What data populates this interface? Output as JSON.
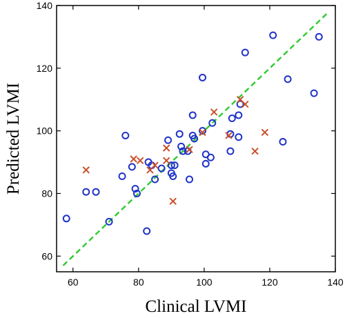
{
  "chart_data": {
    "type": "scatter",
    "title": "",
    "xlabel": "Clinical LVMI",
    "ylabel": "Predicted LVMI",
    "xlim": [
      55,
      140
    ],
    "ylim": [
      55,
      140
    ],
    "xticks": [
      60,
      80,
      100,
      120,
      140
    ],
    "yticks": [
      60,
      80,
      100,
      120,
      140
    ],
    "xtick_labels": [
      "60",
      "80",
      "100",
      "120",
      "140"
    ],
    "ytick_labels": [
      "60",
      "80",
      "100",
      "120",
      "140"
    ],
    "grid": false,
    "legend": "none",
    "series": [
      {
        "marker": "circle",
        "color": "#1f33c8",
        "points": [
          {
            "x": 58,
            "y": 72
          },
          {
            "x": 64,
            "y": 80.5
          },
          {
            "x": 67,
            "y": 80.5
          },
          {
            "x": 71,
            "y": 71
          },
          {
            "x": 75,
            "y": 85.5
          },
          {
            "x": 76,
            "y": 98.5
          },
          {
            "x": 78,
            "y": 88.5
          },
          {
            "x": 79,
            "y": 81.5
          },
          {
            "x": 79.5,
            "y": 80
          },
          {
            "x": 82.5,
            "y": 68
          },
          {
            "x": 83,
            "y": 90
          },
          {
            "x": 84,
            "y": 89
          },
          {
            "x": 85,
            "y": 84.5
          },
          {
            "x": 87,
            "y": 88
          },
          {
            "x": 89,
            "y": 97
          },
          {
            "x": 90,
            "y": 89
          },
          {
            "x": 90,
            "y": 86.5
          },
          {
            "x": 90.5,
            "y": 85.5
          },
          {
            "x": 91,
            "y": 89
          },
          {
            "x": 92.5,
            "y": 99
          },
          {
            "x": 93,
            "y": 95
          },
          {
            "x": 93.5,
            "y": 93.5
          },
          {
            "x": 95,
            "y": 93.5
          },
          {
            "x": 95.5,
            "y": 84.5
          },
          {
            "x": 96.5,
            "y": 98.5
          },
          {
            "x": 96.5,
            "y": 105
          },
          {
            "x": 97,
            "y": 97.5
          },
          {
            "x": 99.5,
            "y": 100
          },
          {
            "x": 99.5,
            "y": 117
          },
          {
            "x": 100.5,
            "y": 92.5
          },
          {
            "x": 100.5,
            "y": 89.5
          },
          {
            "x": 102,
            "y": 91.5
          },
          {
            "x": 102.5,
            "y": 102.5
          },
          {
            "x": 108,
            "y": 93.5
          },
          {
            "x": 108,
            "y": 99
          },
          {
            "x": 108.5,
            "y": 104
          },
          {
            "x": 110.5,
            "y": 98
          },
          {
            "x": 110.5,
            "y": 105
          },
          {
            "x": 111,
            "y": 108.5
          },
          {
            "x": 112.5,
            "y": 125
          },
          {
            "x": 121,
            "y": 130.5
          },
          {
            "x": 124,
            "y": 96.5
          },
          {
            "x": 125.5,
            "y": 116.5
          },
          {
            "x": 133.5,
            "y": 112
          },
          {
            "x": 135,
            "y": 130
          }
        ]
      },
      {
        "marker": "x",
        "color": "#c9502a",
        "points": [
          {
            "x": 64,
            "y": 87.5
          },
          {
            "x": 78.5,
            "y": 91
          },
          {
            "x": 80.5,
            "y": 90.5
          },
          {
            "x": 83.5,
            "y": 87.5
          },
          {
            "x": 85,
            "y": 89
          },
          {
            "x": 88.5,
            "y": 90.5
          },
          {
            "x": 88.5,
            "y": 94.5
          },
          {
            "x": 90.5,
            "y": 77.5
          },
          {
            "x": 95.5,
            "y": 94
          },
          {
            "x": 99.5,
            "y": 99.5
          },
          {
            "x": 103,
            "y": 106
          },
          {
            "x": 107.5,
            "y": 98.5
          },
          {
            "x": 111,
            "y": 110
          },
          {
            "x": 112.5,
            "y": 108.5
          },
          {
            "x": 115.5,
            "y": 93.5
          },
          {
            "x": 118.5,
            "y": 99.5
          }
        ]
      }
    ],
    "reference_line": {
      "style": "dashed",
      "color": "#33cc33",
      "from": {
        "x": 57,
        "y": 57
      },
      "to": {
        "x": 138,
        "y": 138
      }
    }
  }
}
